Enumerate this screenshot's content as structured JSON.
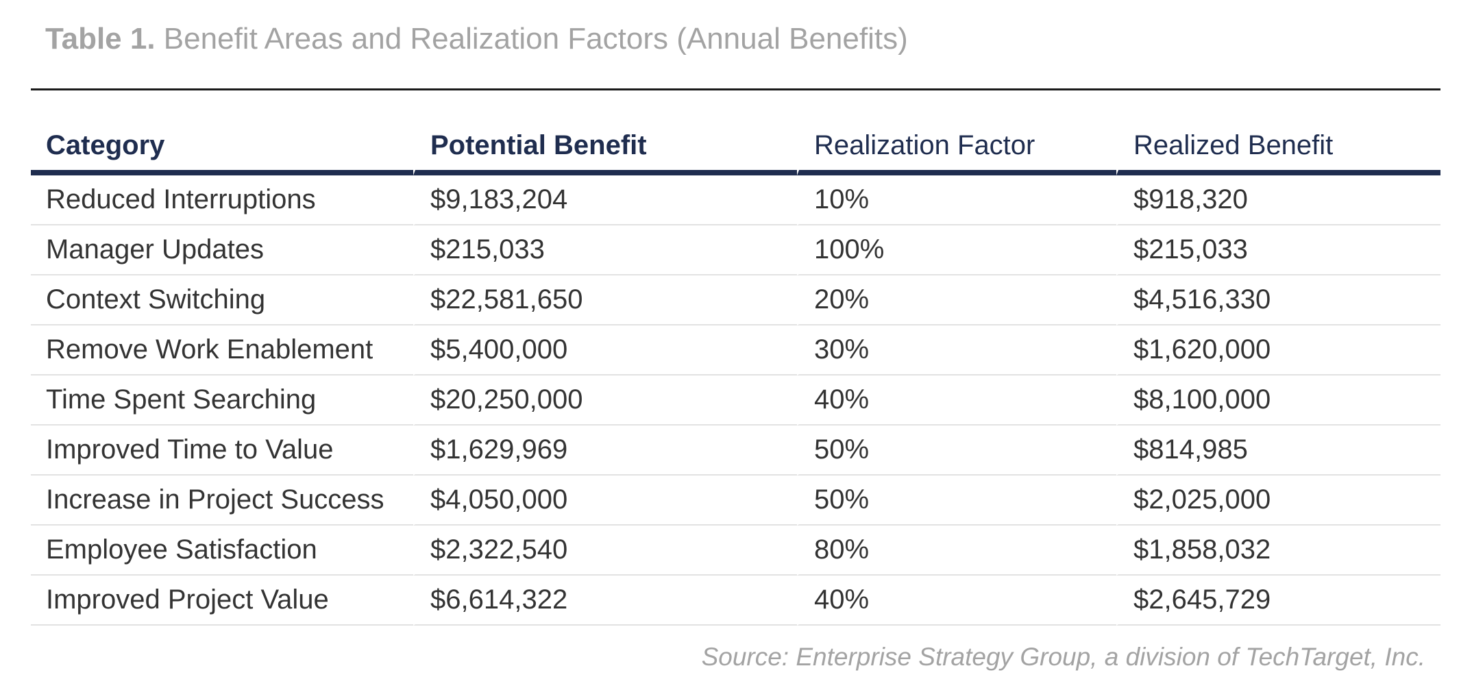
{
  "caption": {
    "label": "Table 1.",
    "title": " Benefit Areas and Realization Factors (Annual Benefits)"
  },
  "table": {
    "headers": [
      "Category",
      "Potential Benefit",
      "Realization Factor",
      "Realized Benefit"
    ],
    "rows": [
      [
        "Reduced Interruptions",
        "$9,183,204",
        "10%",
        "$918,320"
      ],
      [
        "Manager Updates",
        "$215,033",
        "100%",
        "$215,033"
      ],
      [
        "Context Switching",
        "$22,581,650",
        "20%",
        "$4,516,330"
      ],
      [
        "Remove Work Enablement",
        "$5,400,000",
        "30%",
        "$1,620,000"
      ],
      [
        "Time Spent Searching",
        "$20,250,000",
        "40%",
        "$8,100,000"
      ],
      [
        "Improved Time to Value",
        "$1,629,969",
        "50%",
        "$814,985"
      ],
      [
        "Increase in Project Success",
        "$4,050,000",
        "50%",
        "$2,025,000"
      ],
      [
        "Employee Satisfaction",
        "$2,322,540",
        "80%",
        "$1,858,032"
      ],
      [
        "Improved Project Value",
        "$6,614,322",
        "40%",
        "$2,645,729"
      ]
    ]
  },
  "source": "Source: Enterprise Strategy Group, a division of TechTarget, Inc.",
  "colors": {
    "header_text": "#1f2d4f",
    "header_rule": "#1f2d4f",
    "caption_text": "#a3a3a3",
    "body_text": "#333333",
    "row_divider": "#e2e2e2"
  }
}
